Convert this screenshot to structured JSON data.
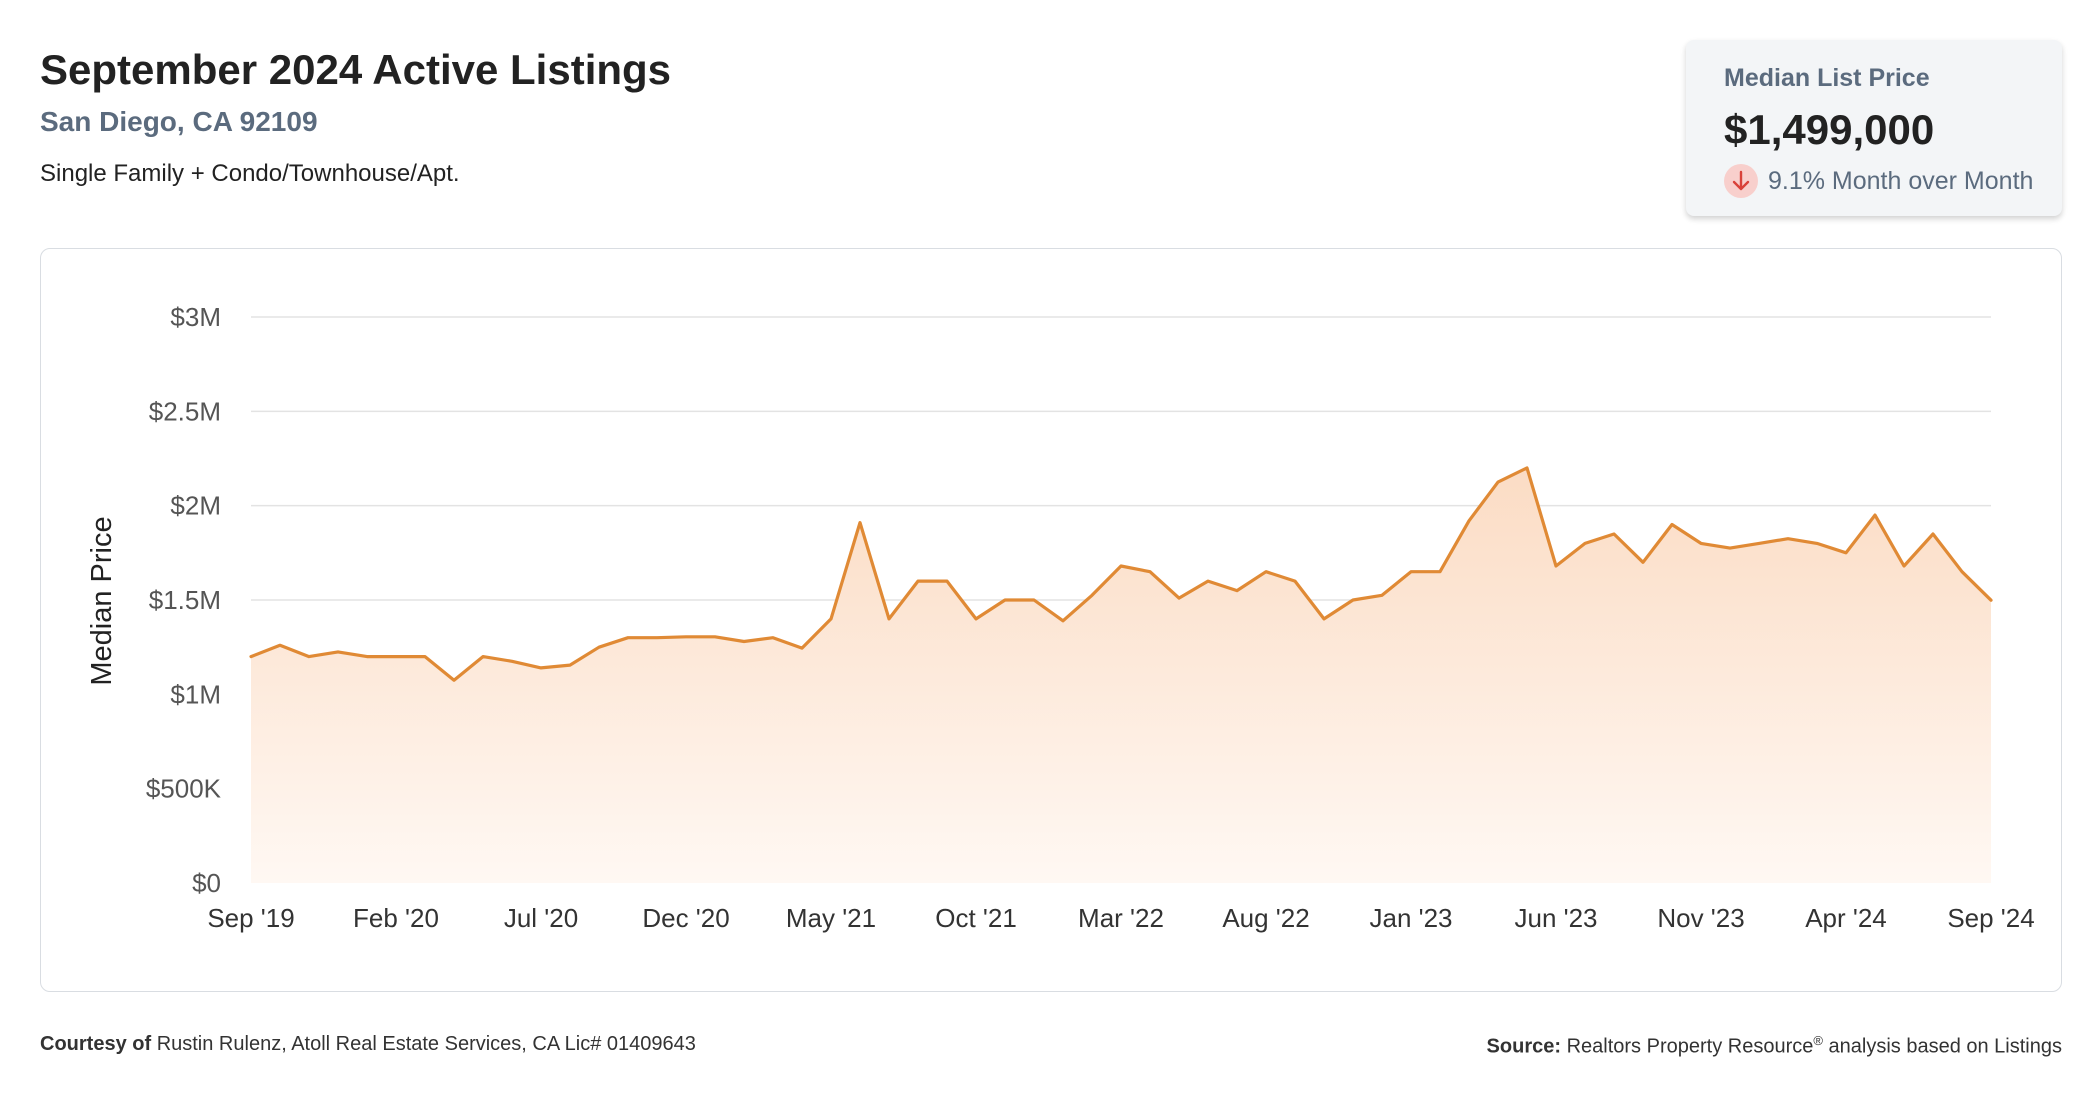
{
  "header": {
    "title": "September 2024 Active Listings",
    "location": "San Diego, CA 92109",
    "property_types": "Single Family + Condo/Townhouse/Apt."
  },
  "summary_card": {
    "label": "Median List Price",
    "value": "$1,499,000",
    "change": "9.1% Month over Month",
    "change_direction": "down",
    "change_icon": "arrow-down-icon"
  },
  "footer": {
    "courtesy_label": "Courtesy of",
    "courtesy_text": "Rustin Rulenz, Atoll Real Estate Services, CA Lic# 01409643",
    "source_label": "Source:",
    "source_text_1": "Realtors Property Resource",
    "source_sup": "®",
    "source_text_2": " analysis based on Listings"
  },
  "colors": {
    "line": "#e08a35",
    "fill_top": "#fbdcc4",
    "fill_bottom": "#fff8f3",
    "grid": "#e3e3e3",
    "subtitle": "#5b6b7e",
    "down_badge": "#f8cfcc",
    "down_arrow": "#d9423a"
  },
  "chart_data": {
    "type": "area",
    "ylabel": "Median Price",
    "ylim": [
      0,
      3000000
    ],
    "y_ticks": [
      {
        "value": 0,
        "label": "$0"
      },
      {
        "value": 500000,
        "label": "$500K"
      },
      {
        "value": 1000000,
        "label": "$1M"
      },
      {
        "value": 1500000,
        "label": "$1.5M"
      },
      {
        "value": 2000000,
        "label": "$2M"
      },
      {
        "value": 2500000,
        "label": "$2.5M"
      },
      {
        "value": 3000000,
        "label": "$3M"
      }
    ],
    "x_ticks": [
      "Sep '19",
      "Feb '20",
      "Jul '20",
      "Dec '20",
      "May '21",
      "Oct '21",
      "Mar '22",
      "Aug '22",
      "Jan '23",
      "Jun '23",
      "Nov '23",
      "Apr '24",
      "Sep '24"
    ],
    "x_start": "2019-09",
    "x_end": "2024-09",
    "grid": true,
    "series": [
      {
        "values": [
          1200000,
          1260000,
          1200000,
          1225000,
          1200000,
          1200000,
          1200000,
          1075000,
          1200000,
          1175000,
          1140000,
          1155000,
          1250000,
          1300000,
          1300000,
          1305000,
          1305000,
          1280000,
          1300000,
          1245000,
          1400000,
          1910000,
          1400000,
          1600000,
          1600000,
          1400000,
          1500000,
          1500000,
          1390000,
          1525000,
          1680000,
          1650000,
          1510000,
          1600000,
          1550000,
          1650000,
          1600000,
          1400000,
          1500000,
          1525000,
          1650000,
          1650000,
          1920000,
          2125000,
          2200000,
          1680000,
          1800000,
          1850000,
          1700000,
          1900000,
          1800000,
          1775000,
          1800000,
          1825000,
          1800000,
          1750000,
          1950000,
          1680000,
          1850000,
          1650000,
          1499000
        ]
      }
    ]
  }
}
